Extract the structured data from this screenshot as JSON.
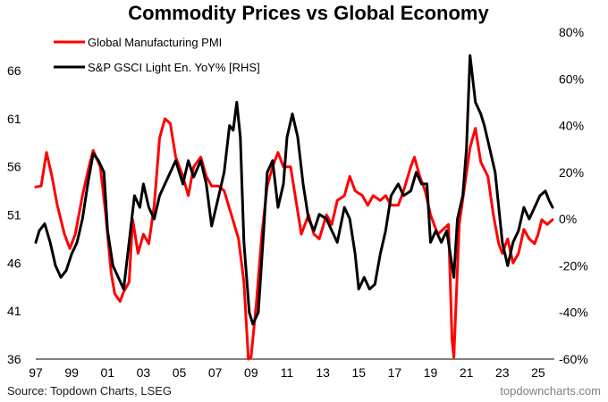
{
  "chart_data": {
    "type": "line",
    "title": "Commodity Prices vs Global Economy",
    "source": "Source: Topdown Charts, LSEG",
    "brand": "topdowncharts.com",
    "x_tick_labels": [
      "97",
      "99",
      "01",
      "03",
      "05",
      "07",
      "09",
      "11",
      "13",
      "15",
      "17",
      "19",
      "21",
      "23",
      "25"
    ],
    "x_range": [
      1997.0,
      2025.9
    ],
    "left_axis": {
      "range": [
        36,
        70
      ],
      "ticks": [
        "66",
        "61",
        "56",
        "51",
        "46",
        "41",
        "36"
      ]
    },
    "right_axis": {
      "range": [
        -60,
        80
      ],
      "ticks": [
        "80%",
        "60%",
        "40%",
        "20%",
        "0%",
        "-20%",
        "-40%",
        "-60%"
      ]
    },
    "grid": false,
    "legend_position": "top-left",
    "series": [
      {
        "name": "Global Manufacturing PMI",
        "axis": "left",
        "color": "#ff0000",
        "points": [
          [
            1997.0,
            53.9
          ],
          [
            1997.3,
            54.0
          ],
          [
            1997.6,
            57.5
          ],
          [
            1997.9,
            55.0
          ],
          [
            1998.2,
            52.0
          ],
          [
            1998.6,
            49.0
          ],
          [
            1998.9,
            47.5
          ],
          [
            1999.2,
            49.0
          ],
          [
            1999.6,
            53.0
          ],
          [
            1999.9,
            55.5
          ],
          [
            2000.2,
            57.7
          ],
          [
            2000.6,
            56.0
          ],
          [
            2000.9,
            51.0
          ],
          [
            2001.2,
            45.0
          ],
          [
            2001.4,
            42.8
          ],
          [
            2001.7,
            42.0
          ],
          [
            2001.9,
            43.0
          ],
          [
            2002.2,
            44.0
          ],
          [
            2002.4,
            50.5
          ],
          [
            2002.7,
            47.0
          ],
          [
            2003.0,
            49.0
          ],
          [
            2003.3,
            48.0
          ],
          [
            2003.6,
            52.0
          ],
          [
            2003.9,
            59.0
          ],
          [
            2004.2,
            61.0
          ],
          [
            2004.5,
            60.5
          ],
          [
            2004.8,
            57.0
          ],
          [
            2005.2,
            55.0
          ],
          [
            2005.5,
            53.0
          ],
          [
            2005.8,
            56.0
          ],
          [
            2006.2,
            57.0
          ],
          [
            2006.5,
            55.0
          ],
          [
            2006.8,
            54.0
          ],
          [
            2007.2,
            54.0
          ],
          [
            2007.5,
            53.5
          ],
          [
            2007.9,
            51.0
          ],
          [
            2008.3,
            48.5
          ],
          [
            2008.6,
            44.0
          ],
          [
            2008.85,
            36.0
          ],
          [
            2009.0,
            36.2
          ],
          [
            2009.3,
            42.0
          ],
          [
            2009.6,
            49.0
          ],
          [
            2009.9,
            54.0
          ],
          [
            2010.2,
            56.0
          ],
          [
            2010.5,
            57.5
          ],
          [
            2010.8,
            56.0
          ],
          [
            2011.2,
            56.0
          ],
          [
            2011.5,
            52.5
          ],
          [
            2011.8,
            49.0
          ],
          [
            2012.2,
            51.0
          ],
          [
            2012.5,
            49.0
          ],
          [
            2012.8,
            48.5
          ],
          [
            2013.2,
            51.0
          ],
          [
            2013.5,
            50.0
          ],
          [
            2013.8,
            52.5
          ],
          [
            2014.2,
            53.0
          ],
          [
            2014.5,
            55.0
          ],
          [
            2014.8,
            53.5
          ],
          [
            2015.2,
            53.0
          ],
          [
            2015.5,
            52.0
          ],
          [
            2015.8,
            53.0
          ],
          [
            2016.2,
            52.5
          ],
          [
            2016.5,
            53.0
          ],
          [
            2016.8,
            52.0
          ],
          [
            2017.2,
            52.0
          ],
          [
            2017.5,
            53.5
          ],
          [
            2017.9,
            56.0
          ],
          [
            2018.1,
            57.0
          ],
          [
            2018.4,
            55.0
          ],
          [
            2018.7,
            53.5
          ],
          [
            2019.0,
            51.0
          ],
          [
            2019.4,
            49.0
          ],
          [
            2019.7,
            49.5
          ],
          [
            2020.0,
            50.0
          ],
          [
            2020.2,
            38.0
          ],
          [
            2020.3,
            36.2
          ],
          [
            2020.6,
            50.0
          ],
          [
            2020.9,
            54.0
          ],
          [
            2021.2,
            58.0
          ],
          [
            2021.5,
            60.0
          ],
          [
            2021.8,
            56.5
          ],
          [
            2022.2,
            55.0
          ],
          [
            2022.5,
            51.0
          ],
          [
            2022.8,
            48.0
          ],
          [
            2023.0,
            47.0
          ],
          [
            2023.3,
            48.5
          ],
          [
            2023.6,
            46.0
          ],
          [
            2023.9,
            47.0
          ],
          [
            2024.2,
            49.5
          ],
          [
            2024.5,
            48.5
          ],
          [
            2024.8,
            48.0
          ],
          [
            2025.0,
            49.0
          ],
          [
            2025.2,
            50.5
          ],
          [
            2025.5,
            50.0
          ],
          [
            2025.8,
            50.5
          ]
        ]
      },
      {
        "name": "S&P GSCI Light En. YoY% [RHS]",
        "axis": "right",
        "color": "#000000",
        "points": [
          [
            1997.0,
            -10
          ],
          [
            1997.2,
            -5
          ],
          [
            1997.5,
            -2
          ],
          [
            1997.8,
            -10
          ],
          [
            1998.1,
            -20
          ],
          [
            1998.4,
            -25
          ],
          [
            1998.7,
            -22
          ],
          [
            1999.0,
            -15
          ],
          [
            1999.3,
            -10
          ],
          [
            1999.6,
            0
          ],
          [
            1999.9,
            15
          ],
          [
            2000.2,
            28
          ],
          [
            2000.5,
            25
          ],
          [
            2000.8,
            20
          ],
          [
            2001.0,
            -5
          ],
          [
            2001.3,
            -20
          ],
          [
            2001.6,
            -25
          ],
          [
            2001.9,
            -30
          ],
          [
            2002.2,
            -10
          ],
          [
            2002.5,
            10
          ],
          [
            2002.8,
            5
          ],
          [
            2003.0,
            15
          ],
          [
            2003.3,
            5
          ],
          [
            2003.6,
            0
          ],
          [
            2003.9,
            10
          ],
          [
            2004.2,
            15
          ],
          [
            2004.5,
            20
          ],
          [
            2004.8,
            25
          ],
          [
            2005.2,
            15
          ],
          [
            2005.5,
            25
          ],
          [
            2005.8,
            18
          ],
          [
            2006.2,
            25
          ],
          [
            2006.5,
            15
          ],
          [
            2006.8,
            -3
          ],
          [
            2007.2,
            10
          ],
          [
            2007.5,
            20
          ],
          [
            2007.8,
            40
          ],
          [
            2008.0,
            38
          ],
          [
            2008.2,
            50
          ],
          [
            2008.4,
            35
          ],
          [
            2008.6,
            -10
          ],
          [
            2008.9,
            -40
          ],
          [
            2009.1,
            -45
          ],
          [
            2009.4,
            -40
          ],
          [
            2009.7,
            -5
          ],
          [
            2009.9,
            20
          ],
          [
            2010.2,
            25
          ],
          [
            2010.5,
            5
          ],
          [
            2010.8,
            15
          ],
          [
            2011.0,
            35
          ],
          [
            2011.3,
            45
          ],
          [
            2011.6,
            35
          ],
          [
            2011.9,
            15
          ],
          [
            2012.2,
            0
          ],
          [
            2012.5,
            -5
          ],
          [
            2012.8,
            2
          ],
          [
            2013.2,
            0
          ],
          [
            2013.5,
            -5
          ],
          [
            2013.8,
            -10
          ],
          [
            2014.2,
            5
          ],
          [
            2014.5,
            0
          ],
          [
            2014.8,
            -15
          ],
          [
            2015.0,
            -30
          ],
          [
            2015.3,
            -25
          ],
          [
            2015.6,
            -30
          ],
          [
            2015.9,
            -28
          ],
          [
            2016.2,
            -15
          ],
          [
            2016.5,
            -5
          ],
          [
            2016.8,
            10
          ],
          [
            2017.2,
            15
          ],
          [
            2017.5,
            10
          ],
          [
            2017.9,
            12
          ],
          [
            2018.2,
            20
          ],
          [
            2018.5,
            15
          ],
          [
            2018.8,
            15
          ],
          [
            2019.0,
            -10
          ],
          [
            2019.3,
            -5
          ],
          [
            2019.6,
            -10
          ],
          [
            2019.9,
            -5
          ],
          [
            2020.2,
            -20
          ],
          [
            2020.3,
            -25
          ],
          [
            2020.5,
            0
          ],
          [
            2020.8,
            10
          ],
          [
            2021.0,
            30
          ],
          [
            2021.2,
            70
          ],
          [
            2021.5,
            50
          ],
          [
            2021.8,
            45
          ],
          [
            2022.0,
            40
          ],
          [
            2022.3,
            30
          ],
          [
            2022.6,
            20
          ],
          [
            2022.8,
            5
          ],
          [
            2023.0,
            -10
          ],
          [
            2023.3,
            -20
          ],
          [
            2023.6,
            -10
          ],
          [
            2023.9,
            -5
          ],
          [
            2024.2,
            5
          ],
          [
            2024.5,
            0
          ],
          [
            2024.8,
            5
          ],
          [
            2025.1,
            10
          ],
          [
            2025.4,
            12
          ],
          [
            2025.6,
            8
          ],
          [
            2025.8,
            5
          ]
        ]
      }
    ]
  }
}
